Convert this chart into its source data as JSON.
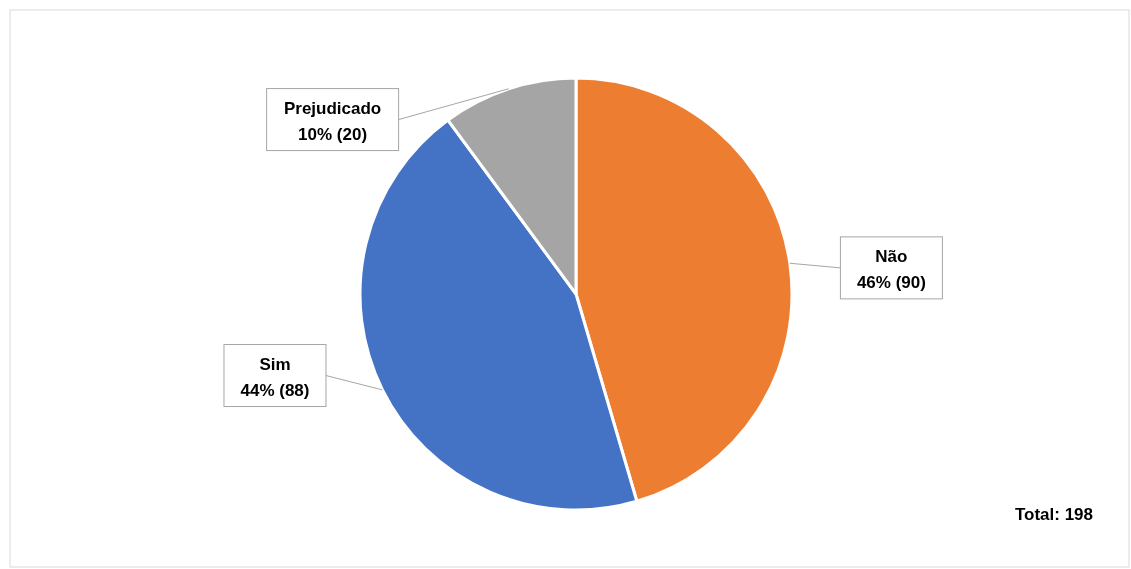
{
  "chart_data": {
    "type": "pie",
    "categories": [
      "Não",
      "Sim",
      "Prejudicado"
    ],
    "values": [
      90,
      88,
      20
    ],
    "colors": [
      "#ed7d31",
      "#4472c4",
      "#a5a5a5"
    ],
    "value_labels": [
      "46% (90)",
      "44% (88)",
      "10% (20)"
    ],
    "annotations": [
      "Total: 198"
    ]
  }
}
